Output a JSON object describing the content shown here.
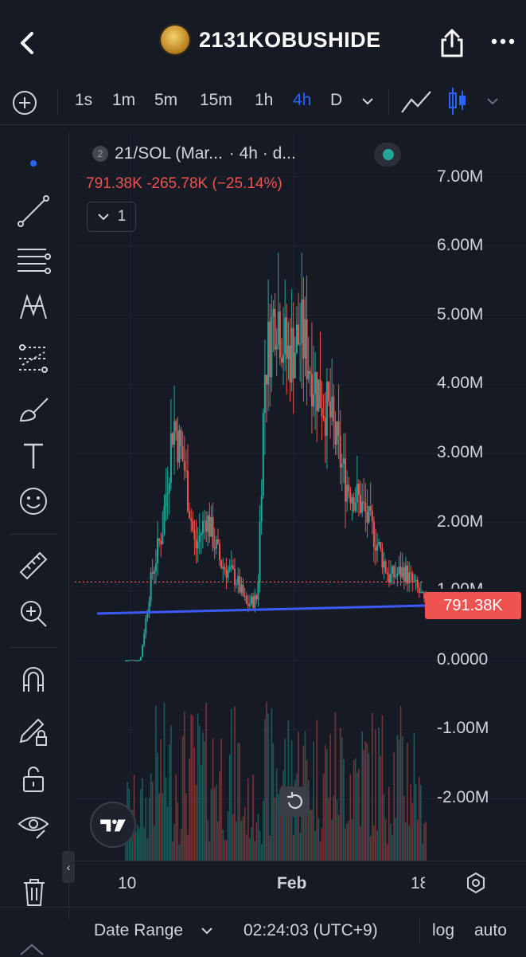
{
  "header": {
    "title": "2131KOBUSHIDE",
    "back_icon": "chevron-left-icon",
    "share_icon": "share-icon",
    "more_icon": "ellipsis-icon"
  },
  "timeframes": {
    "items": [
      "1s",
      "1m",
      "5m",
      "15m",
      "1h",
      "4h",
      "D"
    ],
    "active": "4h"
  },
  "tools": [
    "dot-icon",
    "trend-line-icon",
    "fib-icon",
    "pattern-icon",
    "forecast-icon",
    "brush-icon",
    "text-icon",
    "emoji-icon",
    "ruler-icon",
    "zoom-in-icon",
    "magnet-icon",
    "lock-drawing-icon",
    "unlock-icon",
    "eye-icon",
    "trash-icon"
  ],
  "legend": {
    "badge": "2",
    "title": "21/SOL (Mar...",
    "interval": "· 4h · d...",
    "last": "791.38K",
    "change": "-265.78K",
    "change_pct": "(−25.14%)",
    "collapse_count": "1"
  },
  "price_axis": {
    "ticks": [
      "7.00M",
      "6.00M",
      "5.00M",
      "4.00M",
      "3.00M",
      "2.00M",
      "1.00M",
      "0.0000",
      "-1.00M",
      "-2.00M"
    ],
    "current_price_label": "791.38K"
  },
  "time_axis": {
    "labels": [
      "10",
      "Feb",
      "18"
    ]
  },
  "bottom": {
    "date_range": "Date Range",
    "clock": "02:24:03 (UTC+9)",
    "log": "log",
    "auto": "auto"
  },
  "colors": {
    "up": "#26a69a",
    "down": "#ef5350",
    "accent": "#2962ff",
    "trendline": "#3d5afe"
  },
  "chart_data": {
    "type": "candlestick",
    "symbol": "21/SOL",
    "interval": "4h",
    "ylim": [
      -2500000,
      7500000
    ],
    "approx_close_path": [
      [
        0,
        0
      ],
      [
        0.04,
        0
      ],
      [
        0.07,
        1200000
      ],
      [
        0.1,
        1900000
      ],
      [
        0.13,
        3500000
      ],
      [
        0.16,
        2800000
      ],
      [
        0.19,
        1600000
      ],
      [
        0.22,
        2100000
      ],
      [
        0.26,
        1400000
      ],
      [
        0.3,
        1200000
      ],
      [
        0.33,
        800000
      ],
      [
        0.36,
        900000
      ],
      [
        0.38,
        4200000
      ],
      [
        0.41,
        5200000
      ],
      [
        0.44,
        4400000
      ],
      [
        0.48,
        4700000
      ],
      [
        0.52,
        4000000
      ],
      [
        0.56,
        3500000
      ],
      [
        0.6,
        2600000
      ],
      [
        0.64,
        2300000
      ],
      [
        0.68,
        1800000
      ],
      [
        0.72,
        1200000
      ],
      [
        0.76,
        1300000
      ],
      [
        0.8,
        1000000
      ],
      [
        0.82,
        791380
      ]
    ],
    "last_price": 791380,
    "trendline": true
  }
}
